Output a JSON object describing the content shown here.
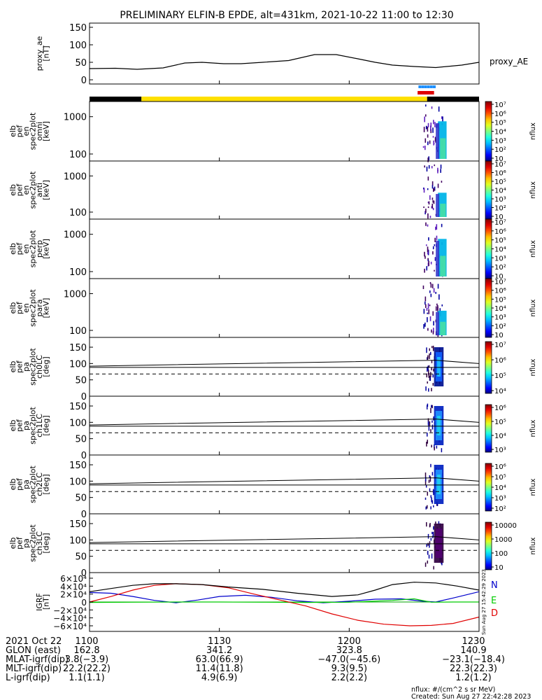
{
  "title": "PRELIMINARY ELFIN-B EPDE, alt=431km, 2021-10-22 11:00 to 12:30",
  "chart_data": [
    {
      "type": "line",
      "ylabel": [
        "proxy_ae",
        "[nT]"
      ],
      "ylim": [
        0,
        150
      ],
      "yticks": [
        "0",
        "50",
        "100",
        "150"
      ],
      "series": [
        {
          "name": "proxy_AE",
          "color": "#000000",
          "x": [
            0,
            6,
            11,
            17,
            22,
            26,
            31,
            35,
            40,
            46,
            52,
            57,
            62,
            66,
            70,
            75,
            80,
            86,
            90
          ],
          "values": [
            32,
            33,
            30,
            34,
            48,
            50,
            46,
            46,
            50,
            55,
            72,
            72,
            60,
            50,
            42,
            38,
            35,
            42,
            50
          ]
        }
      ]
    },
    {
      "type": "bar",
      "name": "spacecraft-state-bar",
      "segments": [
        {
          "from": 0,
          "to": 12,
          "color": "#000000"
        },
        {
          "from": 12,
          "to": 78,
          "color": "#FFE000"
        },
        {
          "from": 78,
          "to": 90,
          "color": "#000000"
        }
      ],
      "markers_blue": [
        {
          "from": 76,
          "to": 80,
          "color": "#1E90FF"
        }
      ],
      "markers_red": [
        {
          "from": 75.8,
          "to": 79.6,
          "color": "#E00000"
        }
      ]
    },
    {
      "type": "heatmap",
      "ylabel": [
        "elb",
        "pef",
        "en",
        "spec2plot",
        "omni",
        "[keV]"
      ],
      "yscale": "log",
      "yticks": [
        "100",
        "1000"
      ],
      "colorbar": {
        "label": "nflux",
        "ticks": [
          "10",
          "10²",
          "10³",
          "10⁴",
          "10⁵",
          "10⁶",
          "10⁷"
        ]
      }
    },
    {
      "type": "heatmap",
      "ylabel": [
        "elb",
        "pef",
        "en",
        "spec2plot",
        "anti",
        "[keV]"
      ],
      "yscale": "log",
      "yticks": [
        "100",
        "1000"
      ],
      "colorbar": {
        "label": "nflux",
        "ticks": [
          "10",
          "10²",
          "10³",
          "10⁴",
          "10⁵",
          "10⁶",
          "10⁷"
        ]
      }
    },
    {
      "type": "heatmap",
      "ylabel": [
        "elb",
        "pef",
        "en",
        "spec2plot",
        "perp",
        "[keV]"
      ],
      "yscale": "log",
      "yticks": [
        "100",
        "1000"
      ],
      "colorbar": {
        "label": "nflux",
        "ticks": [
          "10",
          "10²",
          "10³",
          "10⁴",
          "10⁵",
          "10⁶",
          "10⁷"
        ]
      }
    },
    {
      "type": "heatmap",
      "ylabel": [
        "elb",
        "pef",
        "en",
        "spec2plot",
        "para",
        "[keV]"
      ],
      "yscale": "log",
      "yticks": [
        "100",
        "1000"
      ],
      "colorbar": {
        "label": "nflux",
        "ticks": [
          "10",
          "10²",
          "10³",
          "10⁴",
          "10⁵",
          "10⁶",
          "10⁷"
        ]
      }
    },
    {
      "type": "heatmap",
      "ylabel": [
        "elb",
        "pef",
        "pa",
        "spec2plot",
        "ch0LC",
        "[deg]"
      ],
      "ylim": [
        0,
        180
      ],
      "yticks": [
        "0",
        "50",
        "100",
        "150"
      ],
      "colorbar": {
        "label": "nflux",
        "ticks": [
          "10⁴",
          "10⁵",
          "10⁶",
          "10⁷"
        ]
      }
    },
    {
      "type": "heatmap",
      "ylabel": [
        "elb",
        "pef",
        "pa",
        "spec2plot",
        "ch1LC",
        "[deg]"
      ],
      "ylim": [
        0,
        180
      ],
      "yticks": [
        "0",
        "50",
        "100",
        "150"
      ],
      "colorbar": {
        "label": "nflux",
        "ticks": [
          "10³",
          "10⁴",
          "10⁵",
          "10⁶"
        ]
      }
    },
    {
      "type": "heatmap",
      "ylabel": [
        "elb",
        "pef",
        "pa",
        "spec2plot",
        "ch2LC",
        "[deg]"
      ],
      "ylim": [
        0,
        180
      ],
      "yticks": [
        "0",
        "50",
        "100",
        "150"
      ],
      "colorbar": {
        "label": "nflux",
        "ticks": [
          "10²",
          "10³",
          "10⁴",
          "10⁵",
          "10⁶"
        ]
      }
    },
    {
      "type": "heatmap",
      "ylabel": [
        "elb",
        "pef",
        "pa",
        "spec2plot",
        "ch3LC",
        "[deg]"
      ],
      "ylim": [
        0,
        180
      ],
      "yticks": [
        "0",
        "50",
        "100",
        "150"
      ],
      "colorbar": {
        "label": "nflux",
        "ticks": [
          "10",
          "100",
          "1000",
          "10000"
        ]
      }
    },
    {
      "type": "line",
      "ylabel": [
        "IGRF",
        "[nT]"
      ],
      "ylim": [
        -60000,
        60000
      ],
      "yticks": [
        "−6×10⁴",
        "−4×10⁴",
        "−2×10⁴",
        "0",
        "2×10⁴",
        "4×10⁴",
        "6×10⁴"
      ],
      "side_label": "Sun Aug 27 15:42:29 2023",
      "series": [
        {
          "name": "N",
          "color": "#0000CC",
          "x": [
            0,
            5,
            10,
            15,
            20,
            25,
            30,
            36,
            42,
            48,
            54,
            60,
            66,
            72,
            77,
            80,
            84,
            90
          ],
          "values": [
            24000,
            22000,
            14000,
            4000,
            -2000,
            5000,
            14000,
            17000,
            12000,
            3000,
            -2000,
            2000,
            7000,
            8000,
            2000,
            0,
            10000,
            26000
          ]
        },
        {
          "name": "E",
          "color": "#00CC00",
          "x": [
            0,
            10,
            20,
            30,
            40,
            50,
            60,
            70,
            75,
            79,
            84,
            90
          ],
          "values": [
            -1000,
            -500,
            0,
            0,
            -500,
            -1000,
            -500,
            4000,
            8000,
            -500,
            0,
            0
          ]
        },
        {
          "name": "D",
          "color": "#E00000",
          "x": [
            0,
            5,
            10,
            15,
            20,
            26,
            32,
            38,
            44,
            50,
            56,
            62,
            68,
            74,
            79,
            84,
            90
          ],
          "values": [
            0,
            14000,
            30000,
            42000,
            46000,
            44000,
            36000,
            20000,
            5000,
            -10000,
            -30000,
            -46000,
            -56000,
            -60000,
            -59000,
            -54000,
            -38000
          ]
        },
        {
          "name": "",
          "color": "#000000",
          "x": [
            0,
            5,
            10,
            15,
            20,
            26,
            32,
            40,
            48,
            56,
            62,
            66,
            70,
            75,
            80,
            85,
            90
          ],
          "values": [
            26000,
            34000,
            42000,
            46000,
            46000,
            44000,
            38000,
            32000,
            22000,
            14000,
            18000,
            30000,
            44000,
            50000,
            48000,
            40000,
            30000
          ]
        }
      ]
    }
  ],
  "spectrogram": {
    "blobs_energy": [
      {
        "from": 80.5,
        "to": 82.5,
        "color": "#00B4E8"
      },
      {
        "from": 81.0,
        "to": 82.3,
        "color": "#4CE0A0"
      },
      {
        "from": 80.0,
        "to": 80.8,
        "color": "#2E2EC8"
      }
    ]
  },
  "reference_lines": {
    "solid_deg": 110,
    "dashed_deg": 68
  },
  "xaxis": {
    "range_min": [
      0,
      90
    ],
    "ticks": [
      {
        "min": 0,
        "label": "1100"
      },
      {
        "min": 30,
        "label": "1130"
      },
      {
        "min": 60,
        "label": "1200"
      },
      {
        "min": 90,
        "label": "1230"
      }
    ],
    "rows": [
      {
        "label": "2021 Oct 22",
        "values": [
          "1100",
          "1130",
          "1200",
          "1230"
        ]
      },
      {
        "label": "GLON (east)",
        "values": [
          "162.8",
          "341.2",
          "323.8",
          "140.9"
        ]
      },
      {
        "label": "MLAT-igrf(dip)",
        "values": [
          "3.8(−3.9)",
          "63.0(66.9)",
          "−47.0(−45.6)",
          "−23.1(−18.4)"
        ]
      },
      {
        "label": "MLT-igrf(dip)",
        "values": [
          "22.2(22.2)",
          "11.4(11.8)",
          "9.3(9.5)",
          "22.3(22.3)"
        ]
      },
      {
        "label": "L-igrf(dip)",
        "values": [
          "1.1(1.1)",
          "4.9(6.9)",
          "2.2(2.2)",
          "1.2(1.2)"
        ]
      }
    ]
  },
  "footer": {
    "units": "nflux: #/(cm^2 s sr MeV)",
    "created": "Created: Sun Aug 27 22:42:28 2023"
  }
}
